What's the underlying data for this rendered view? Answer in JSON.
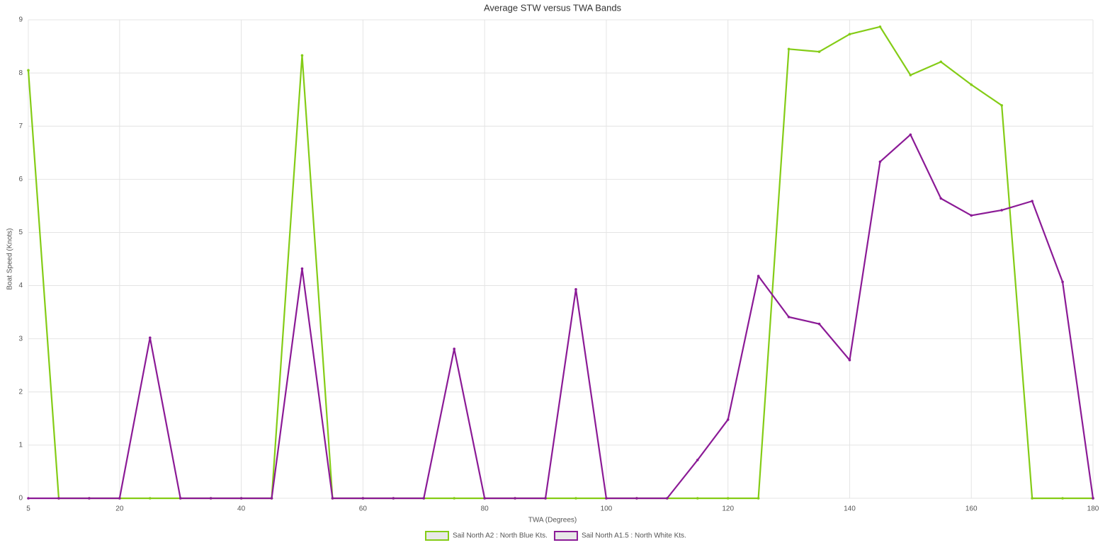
{
  "chart_data": {
    "type": "line",
    "title": "Average STW versus TWA Bands",
    "x_label": "TWA (Degrees)",
    "y_label": "Boat Speed (Knots)",
    "x": [
      5,
      10,
      15,
      20,
      25,
      30,
      35,
      40,
      45,
      50,
      55,
      60,
      65,
      70,
      75,
      80,
      85,
      90,
      95,
      100,
      105,
      110,
      115,
      120,
      125,
      130,
      135,
      140,
      145,
      150,
      155,
      160,
      165,
      170,
      175,
      180
    ],
    "series": [
      {
        "name": "Sail North A2 : North Blue Kts.",
        "color": "#84cc16",
        "values": [
          8.05,
          0,
          0,
          0,
          0,
          0,
          0,
          0,
          0,
          8.33,
          0,
          0,
          0,
          0,
          0,
          0,
          0,
          0,
          0,
          0,
          0,
          0,
          0,
          0,
          0,
          8.45,
          8.4,
          8.73,
          8.87,
          7.96,
          8.21,
          7.78,
          7.39,
          0,
          0,
          0
        ]
      },
      {
        "name": "Sail North A1.5 : North White Kts.",
        "color": "#8b1a96",
        "values": [
          0,
          0,
          0,
          0,
          3.02,
          0,
          0,
          0,
          0,
          4.32,
          0,
          0,
          0,
          0,
          2.81,
          0,
          0,
          0,
          3.93,
          0,
          0,
          0,
          0.72,
          1.48,
          4.18,
          3.41,
          3.28,
          2.6,
          6.33,
          6.84,
          5.64,
          5.32,
          5.42,
          5.59,
          4.07,
          0
        ]
      }
    ],
    "xlim": [
      5,
      180
    ],
    "xticks": [
      5,
      20,
      40,
      60,
      80,
      100,
      120,
      140,
      160,
      180
    ],
    "ylim": [
      0,
      9
    ],
    "yticks": [
      0,
      1,
      2,
      3,
      4,
      5,
      6,
      7,
      8,
      9
    ],
    "grid": true,
    "legend": "bottom"
  }
}
